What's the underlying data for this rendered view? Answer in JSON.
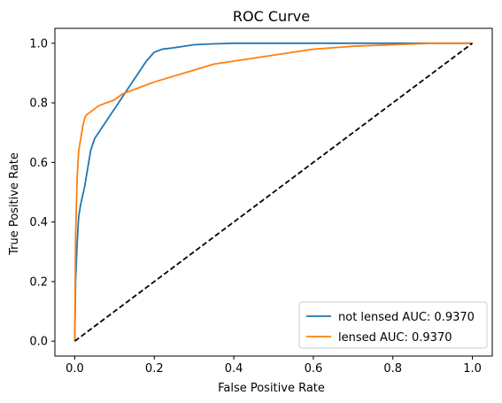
{
  "chart_data": {
    "type": "line",
    "title": "ROC Curve",
    "xlabel": "False Positive Rate",
    "ylabel": "True Positive Rate",
    "xlim": [
      -0.05,
      1.05
    ],
    "ylim": [
      -0.05,
      1.05
    ],
    "xticks": [
      "0.0",
      "0.2",
      "0.4",
      "0.6",
      "0.8",
      "1.0"
    ],
    "yticks": [
      "0.0",
      "0.2",
      "0.4",
      "0.6",
      "0.8",
      "1.0"
    ],
    "grid": false,
    "legend_position": "lower-right",
    "series": [
      {
        "name": "not lensed AUC: 0.9370",
        "color": "#1f77b4",
        "x": [
          0,
          0.002,
          0.005,
          0.008,
          0.01,
          0.015,
          0.02,
          0.025,
          0.03,
          0.035,
          0.04,
          0.045,
          0.05,
          0.06,
          0.07,
          0.08,
          0.09,
          0.1,
          0.11,
          0.12,
          0.13,
          0.14,
          0.15,
          0.16,
          0.17,
          0.18,
          0.2,
          0.22,
          0.25,
          0.3,
          0.35,
          0.4,
          0.5,
          0.6,
          0.7,
          0.8,
          0.9,
          1.0
        ],
        "y": [
          0,
          0.2,
          0.3,
          0.38,
          0.42,
          0.46,
          0.49,
          0.52,
          0.56,
          0.6,
          0.64,
          0.66,
          0.68,
          0.7,
          0.72,
          0.74,
          0.76,
          0.78,
          0.8,
          0.82,
          0.84,
          0.86,
          0.88,
          0.9,
          0.92,
          0.94,
          0.97,
          0.98,
          0.985,
          0.995,
          0.998,
          1.0,
          1.0,
          1.0,
          1.0,
          1.0,
          1.0,
          1.0
        ]
      },
      {
        "name": "lensed AUC: 0.9370",
        "color": "#ff7f0e",
        "x": [
          0,
          0.002,
          0.004,
          0.006,
          0.008,
          0.01,
          0.015,
          0.02,
          0.025,
          0.03,
          0.04,
          0.05,
          0.06,
          0.08,
          0.1,
          0.12,
          0.14,
          0.16,
          0.18,
          0.2,
          0.25,
          0.3,
          0.35,
          0.4,
          0.45,
          0.5,
          0.55,
          0.6,
          0.65,
          0.7,
          0.8,
          0.9,
          1.0
        ],
        "y": [
          0,
          0.35,
          0.45,
          0.55,
          0.6,
          0.64,
          0.68,
          0.72,
          0.75,
          0.76,
          0.77,
          0.78,
          0.79,
          0.8,
          0.81,
          0.83,
          0.84,
          0.85,
          0.86,
          0.87,
          0.89,
          0.91,
          0.93,
          0.94,
          0.95,
          0.96,
          0.97,
          0.98,
          0.985,
          0.99,
          0.995,
          1.0,
          1.0
        ]
      },
      {
        "name": "",
        "color": "#000000",
        "dashed": true,
        "x": [
          0,
          1
        ],
        "y": [
          0,
          1
        ]
      }
    ]
  }
}
